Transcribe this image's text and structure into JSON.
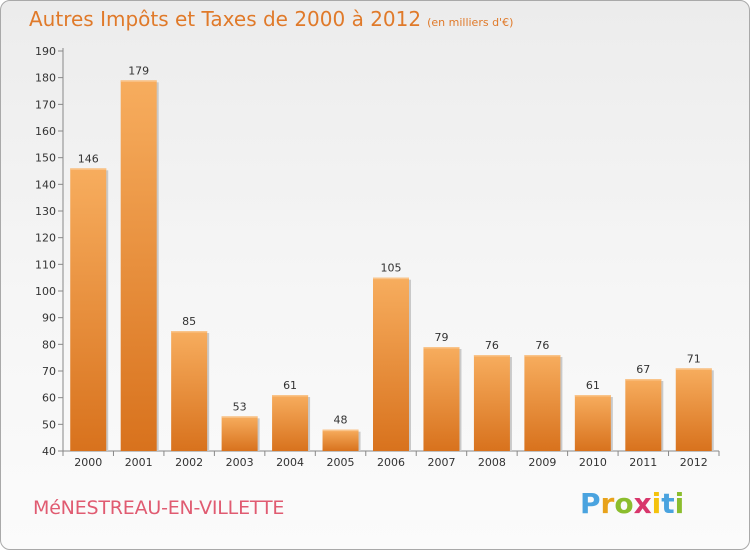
{
  "title": "Autres Impôts et Taxes de 2000 à 2012",
  "unit": "(en milliers d'€)",
  "town": "MéNESTREAU-EN-VILLETTE",
  "brand": {
    "letters": [
      "P",
      "r",
      "o",
      "x",
      "i",
      "t",
      "i"
    ],
    "colors": [
      "#4aa3df",
      "#e8a21a",
      "#8bbd2d",
      "#d8366b",
      "#f4c20d",
      "#4aa3df",
      "#8bbd2d"
    ]
  },
  "colors": {
    "bar": "#f0963a",
    "bar_light": "#f6ad5c",
    "bar_dark": "#d4711c",
    "title": "#e07a2a"
  },
  "chart_data": {
    "type": "bar",
    "title": "Autres Impôts et Taxes de 2000 à 2012",
    "xlabel": "",
    "ylabel": "",
    "categories": [
      "2000",
      "2001",
      "2002",
      "2003",
      "2004",
      "2005",
      "2006",
      "2007",
      "2008",
      "2009",
      "2010",
      "2011",
      "2012"
    ],
    "values": [
      146,
      179,
      85,
      53,
      61,
      48,
      105,
      79,
      76,
      76,
      61,
      67,
      71
    ],
    "ylim": [
      40,
      190
    ],
    "yticks": [
      40,
      50,
      60,
      70,
      80,
      90,
      100,
      110,
      120,
      130,
      140,
      150,
      160,
      170,
      180,
      190
    ],
    "grid": false,
    "legend": "none"
  }
}
